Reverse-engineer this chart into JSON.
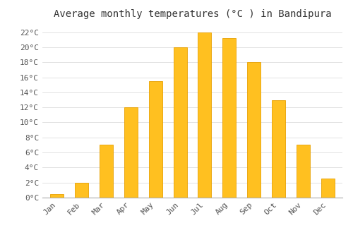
{
  "title": "Average monthly temperatures (°C ) in Bandipura",
  "months": [
    "Jan",
    "Feb",
    "Mar",
    "Apr",
    "May",
    "Jun",
    "Jul",
    "Aug",
    "Sep",
    "Oct",
    "Nov",
    "Dec"
  ],
  "values": [
    0.5,
    2.0,
    7.0,
    12.0,
    15.5,
    20.0,
    22.0,
    21.2,
    18.0,
    13.0,
    7.0,
    2.5
  ],
  "bar_color": "#FFC020",
  "bar_edge_color": "#E8A000",
  "background_color": "#FFFFFF",
  "grid_color": "#DDDDDD",
  "ytick_values": [
    0,
    2,
    4,
    6,
    8,
    10,
    12,
    14,
    16,
    18,
    20,
    22
  ],
  "ymin": 0,
  "ymax": 23,
  "title_fontsize": 10,
  "tick_fontsize": 8,
  "font_family": "monospace",
  "bar_width": 0.55
}
